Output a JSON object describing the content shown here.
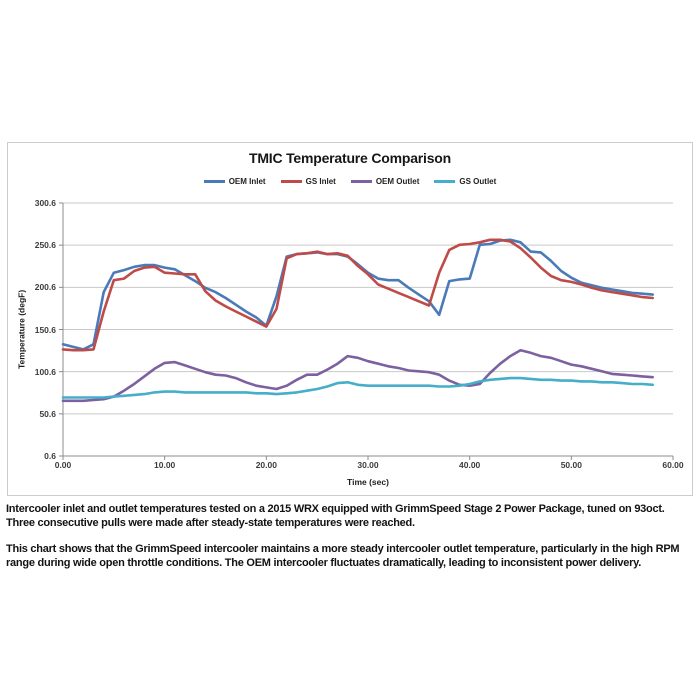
{
  "chart": {
    "title": "TMIC Temperature Comparison",
    "x_axis_title": "Time (sec)",
    "y_axis_title": "Temperature (degF)"
  },
  "captions": {
    "para1": "Intercooler inlet and outlet temperatures tested on a 2015 WRX equipped with GrimmSpeed Stage 2 Power Package, tuned on 93oct. Three consecutive pulls were made after steady-state temperatures were reached.",
    "para2": "This chart shows that the GrimmSpeed intercooler maintains a more steady intercooler outlet temperature, particularly in the high RPM range during wide open throttle conditions. The OEM intercooler fluctuates dramatically, leading to inconsistent power delivery."
  },
  "chart_data": {
    "type": "line",
    "title": "TMIC Temperature Comparison",
    "xlabel": "Time (sec)",
    "ylabel": "Temperature (degF)",
    "xlim": [
      0,
      60
    ],
    "ylim": [
      0.6,
      300.6
    ],
    "xticks": [
      "0.00",
      "10.00",
      "20.00",
      "30.00",
      "40.00",
      "50.00",
      "60.00"
    ],
    "yticks": [
      "0.6",
      "50.6",
      "100.6",
      "150.6",
      "200.6",
      "250.6",
      "300.6"
    ],
    "grid": "horizontal",
    "legend_position": "top",
    "grid_color": "#c9c9c9",
    "axis_color": "#8c8c8c",
    "x": [
      0,
      1,
      2,
      3,
      4,
      5,
      6,
      7,
      8,
      9,
      10,
      11,
      12,
      13,
      14,
      15,
      16,
      17,
      18,
      19,
      20,
      21,
      22,
      23,
      24,
      25,
      26,
      27,
      28,
      29,
      30,
      31,
      32,
      33,
      34,
      35,
      36,
      37,
      38,
      39,
      40,
      41,
      42,
      43,
      44,
      45,
      46,
      47,
      48,
      49,
      50,
      51,
      52,
      53,
      54,
      55,
      56,
      57,
      58
    ],
    "series": [
      {
        "name": "OEM Inlet",
        "color": "#4a7ab8",
        "values": [
          133,
          130,
          127,
          133,
          195,
          218,
          221,
          225,
          227,
          227,
          224,
          222,
          215,
          208,
          200,
          195,
          188,
          180,
          172,
          165,
          155,
          190,
          237,
          240,
          241,
          242,
          240,
          240,
          237,
          228,
          218,
          211,
          209,
          209,
          200,
          192,
          184,
          168,
          208,
          210,
          211,
          251,
          252,
          256,
          257,
          254,
          243,
          242,
          232,
          220,
          212,
          206,
          203,
          200,
          198,
          196,
          194,
          193,
          192
        ]
      },
      {
        "name": "GS Inlet",
        "color": "#be4b48",
        "values": [
          127,
          126,
          126,
          127,
          172,
          209,
          211,
          220,
          224,
          225,
          218,
          217,
          216,
          216,
          196,
          185,
          178,
          172,
          166,
          160,
          154,
          175,
          235,
          240,
          241,
          243,
          240,
          241,
          238,
          226,
          216,
          204,
          199,
          194,
          189,
          184,
          179,
          218,
          245,
          251,
          252,
          254,
          257,
          257,
          255,
          247,
          236,
          224,
          214,
          209,
          207,
          204,
          200,
          197,
          195,
          193,
          191,
          189,
          188
        ]
      },
      {
        "name": "OEM Outlet",
        "color": "#7d60a0",
        "values": [
          66,
          66,
          66,
          67,
          68,
          71,
          78,
          86,
          95,
          104,
          111,
          112,
          108,
          104,
          100,
          97,
          96,
          93,
          88,
          84,
          82,
          80,
          84,
          91,
          97,
          97,
          103,
          110,
          119,
          117,
          113,
          110,
          107,
          105,
          102,
          101,
          100,
          97,
          90,
          85,
          84,
          86,
          99,
          110,
          119,
          126,
          123,
          119,
          117,
          113,
          109,
          107,
          104,
          101,
          98,
          97,
          96,
          95,
          94
        ]
      },
      {
        "name": "GS Outlet",
        "color": "#45aec9",
        "values": [
          70,
          70,
          70,
          70,
          70,
          71,
          72,
          73,
          74,
          76,
          77,
          77,
          76,
          76,
          76,
          76,
          76,
          76,
          76,
          75,
          75,
          74,
          75,
          76,
          78,
          80,
          83,
          87,
          88,
          85,
          84,
          84,
          84,
          84,
          84,
          84,
          84,
          83,
          83,
          84,
          86,
          89,
          91,
          92,
          93,
          93,
          92,
          91,
          91,
          90,
          90,
          89,
          89,
          88,
          88,
          87,
          86,
          86,
          85
        ]
      }
    ]
  }
}
